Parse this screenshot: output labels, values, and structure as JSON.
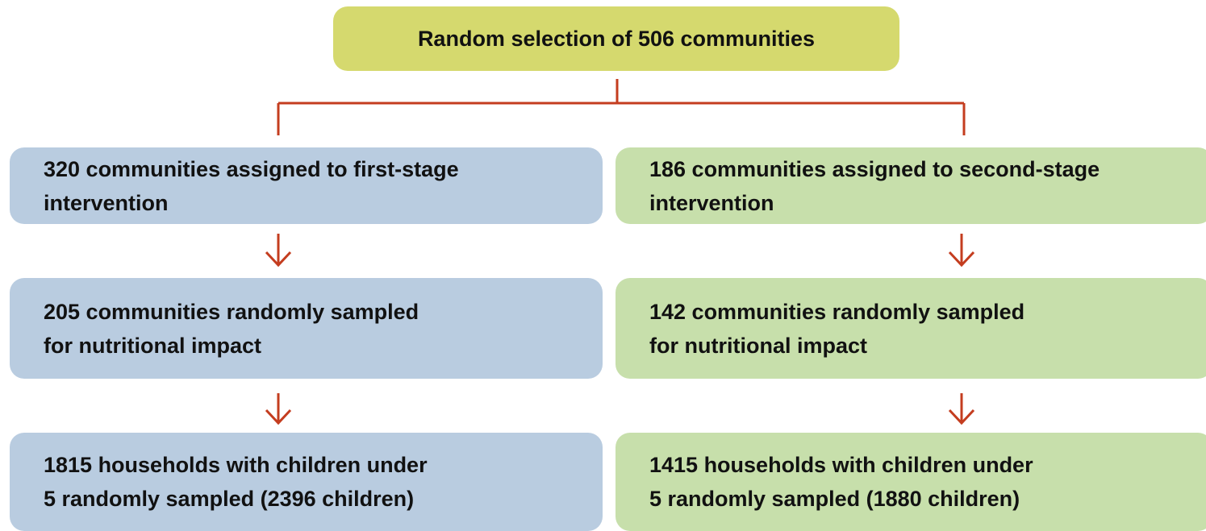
{
  "title": "Random selection of 506 communities",
  "columns": [
    {
      "boxes": [
        {
          "lines": [
            "320 communities assigned to first-stage",
            "intervention"
          ]
        },
        {
          "lines": [
            "205 communities randomly sampled",
            "for nutritional impact"
          ]
        },
        {
          "lines": [
            "1815 households with children under",
            "5 randomly sampled (2396 children)"
          ]
        }
      ]
    },
    {
      "boxes": [
        {
          "lines": [
            "186 communities assigned to second-stage",
            "intervention"
          ]
        },
        {
          "lines": [
            "142 communities randomly sampled",
            "for nutritional impact"
          ]
        },
        {
          "lines": [
            "1415 households with children under",
            "5 randomly sampled (1880 children)"
          ]
        }
      ]
    }
  ]
}
